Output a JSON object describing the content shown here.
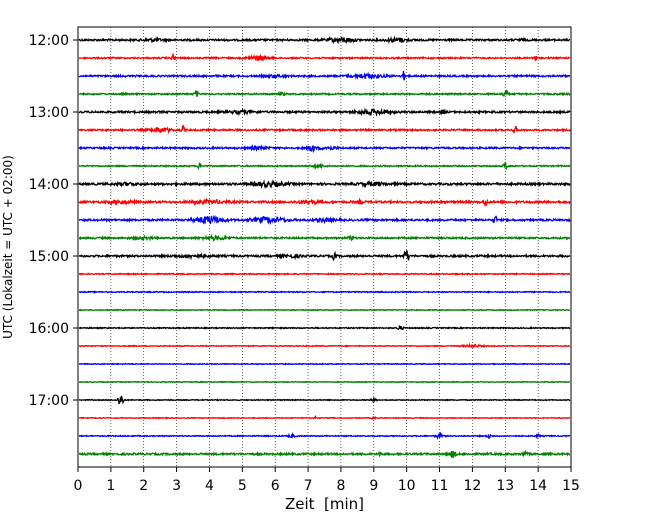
{
  "chart_data": {
    "type": "line",
    "title": "",
    "xlabel": "Zeit  [min]",
    "ylabel": "UTC (Lokalzeit = UTC + 02:00)",
    "xlim": [
      0,
      15
    ],
    "x_ticks": [
      "0",
      "1",
      "2",
      "3",
      "4",
      "5",
      "6",
      "7",
      "8",
      "9",
      "10",
      "11",
      "12",
      "13",
      "14",
      "15"
    ],
    "y_ticks": [
      "12:00",
      "13:00",
      "14:00",
      "15:00",
      "16:00",
      "17:00"
    ],
    "grid": "vertical dotted",
    "legend": "none",
    "trace_colors": [
      "#000000",
      "#ff0000",
      "#0000ff",
      "#008000"
    ],
    "traces": [
      {
        "time": "12:00",
        "color": "#000000",
        "noise": 0.9,
        "events": [
          {
            "t": 8.0,
            "amp": 2.2,
            "w": 0.4
          },
          {
            "t": 9.7,
            "amp": 1.8,
            "w": 0.3
          },
          {
            "t": 2.3,
            "amp": 1.0,
            "w": 0.3
          },
          {
            "t": 13.5,
            "amp": 1.0,
            "w": 0.1
          }
        ]
      },
      {
        "time": "12:15",
        "color": "#ff0000",
        "noise": 0.7,
        "events": [
          {
            "t": 2.9,
            "amp": 4.5,
            "w": 0.05
          },
          {
            "t": 5.5,
            "amp": 2.2,
            "w": 0.3
          },
          {
            "t": 13.9,
            "amp": 4.2,
            "w": 0.05
          }
        ]
      },
      {
        "time": "12:30",
        "color": "#0000ff",
        "noise": 0.8,
        "events": [
          {
            "t": 8.8,
            "amp": 1.8,
            "w": 0.5
          },
          {
            "t": 9.9,
            "amp": 4.5,
            "w": 0.05
          },
          {
            "t": 6.0,
            "amp": 1.0,
            "w": 0.3
          }
        ]
      },
      {
        "time": "12:45",
        "color": "#008000",
        "noise": 0.7,
        "events": [
          {
            "t": 3.6,
            "amp": 3.0,
            "w": 0.05
          },
          {
            "t": 13.0,
            "amp": 5.5,
            "w": 0.06
          },
          {
            "t": 6.2,
            "amp": 1.2,
            "w": 0.1
          }
        ]
      },
      {
        "time": "13:00",
        "color": "#000000",
        "noise": 0.9,
        "events": [
          {
            "t": 9.0,
            "amp": 2.0,
            "w": 0.5
          },
          {
            "t": 11.1,
            "amp": 3.0,
            "w": 0.05
          },
          {
            "t": 5.0,
            "amp": 1.2,
            "w": 0.4
          }
        ]
      },
      {
        "time": "13:15",
        "color": "#ff0000",
        "noise": 0.8,
        "events": [
          {
            "t": 2.5,
            "amp": 2.2,
            "w": 0.3
          },
          {
            "t": 3.2,
            "amp": 3.0,
            "w": 0.05
          },
          {
            "t": 13.3,
            "amp": 3.5,
            "w": 0.05
          }
        ]
      },
      {
        "time": "13:30",
        "color": "#0000ff",
        "noise": 0.8,
        "events": [
          {
            "t": 7.1,
            "amp": 4.5,
            "w": 0.08
          },
          {
            "t": 5.5,
            "amp": 1.3,
            "w": 0.3
          },
          {
            "t": 7.6,
            "amp": 1.2,
            "w": 0.3
          }
        ]
      },
      {
        "time": "13:45",
        "color": "#008000",
        "noise": 0.6,
        "events": [
          {
            "t": 3.7,
            "amp": 3.2,
            "w": 0.05
          },
          {
            "t": 13.0,
            "amp": 3.8,
            "w": 0.05
          },
          {
            "t": 7.3,
            "amp": 1.2,
            "w": 0.2
          }
        ]
      },
      {
        "time": "14:00",
        "color": "#000000",
        "noise": 1.0,
        "events": [
          {
            "t": 5.8,
            "amp": 2.2,
            "w": 0.5
          },
          {
            "t": 9.0,
            "amp": 1.3,
            "w": 0.4
          },
          {
            "t": 1.5,
            "amp": 1.0,
            "w": 0.3
          }
        ]
      },
      {
        "time": "14:15",
        "color": "#ff0000",
        "noise": 1.0,
        "events": [
          {
            "t": 1.3,
            "amp": 1.5,
            "w": 0.3
          },
          {
            "t": 4.0,
            "amp": 1.5,
            "w": 0.5
          },
          {
            "t": 7.0,
            "amp": 1.6,
            "w": 0.3
          },
          {
            "t": 8.6,
            "amp": 2.2,
            "w": 0.05
          },
          {
            "t": 12.4,
            "amp": 3.5,
            "w": 0.05
          }
        ]
      },
      {
        "time": "14:30",
        "color": "#0000ff",
        "noise": 0.9,
        "events": [
          {
            "t": 4.0,
            "amp": 3.5,
            "w": 0.4
          },
          {
            "t": 5.8,
            "amp": 2.5,
            "w": 0.5
          },
          {
            "t": 7.5,
            "amp": 1.5,
            "w": 0.3
          },
          {
            "t": 12.7,
            "amp": 4.0,
            "w": 0.05
          }
        ]
      },
      {
        "time": "14:45",
        "color": "#008000",
        "noise": 0.8,
        "events": [
          {
            "t": 4.2,
            "amp": 1.5,
            "w": 0.4
          },
          {
            "t": 8.3,
            "amp": 2.2,
            "w": 0.08
          },
          {
            "t": 2.0,
            "amp": 1.0,
            "w": 0.3
          }
        ]
      },
      {
        "time": "15:00",
        "color": "#000000",
        "noise": 0.9,
        "events": [
          {
            "t": 7.8,
            "amp": 4.2,
            "w": 0.05
          },
          {
            "t": 10.0,
            "amp": 6.5,
            "w": 0.07
          },
          {
            "t": 3.5,
            "amp": 1.2,
            "w": 0.5
          },
          {
            "t": 6.5,
            "amp": 1.2,
            "w": 0.3
          }
        ]
      },
      {
        "time": "15:15",
        "color": "#ff0000",
        "noise": 0.5,
        "events": []
      },
      {
        "time": "15:30",
        "color": "#0000ff",
        "noise": 0.5,
        "events": []
      },
      {
        "time": "15:45",
        "color": "#008000",
        "noise": 0.4,
        "events": []
      },
      {
        "time": "16:00",
        "color": "#000000",
        "noise": 0.5,
        "events": [
          {
            "t": 9.8,
            "amp": 1.8,
            "w": 0.1
          }
        ]
      },
      {
        "time": "16:15",
        "color": "#ff0000",
        "noise": 0.4,
        "events": [
          {
            "t": 12.0,
            "amp": 1.0,
            "w": 0.3
          }
        ]
      },
      {
        "time": "16:30",
        "color": "#0000ff",
        "noise": 0.4,
        "events": []
      },
      {
        "time": "16:45",
        "color": "#008000",
        "noise": 0.35,
        "events": []
      },
      {
        "time": "17:00",
        "color": "#000000",
        "noise": 0.4,
        "events": [
          {
            "t": 1.3,
            "amp": 6.5,
            "w": 0.08
          },
          {
            "t": 9.0,
            "amp": 1.0,
            "w": 0.1
          }
        ]
      },
      {
        "time": "17:15",
        "color": "#ff0000",
        "noise": 0.35,
        "events": [
          {
            "t": 7.2,
            "amp": 1.5,
            "w": 0.05
          },
          {
            "t": 9.0,
            "amp": 1.5,
            "w": 0.05
          }
        ]
      },
      {
        "time": "17:30",
        "color": "#0000ff",
        "noise": 0.5,
        "events": [
          {
            "t": 6.5,
            "amp": 1.5,
            "w": 0.1
          },
          {
            "t": 11.0,
            "amp": 2.0,
            "w": 0.1
          },
          {
            "t": 12.5,
            "amp": 3.0,
            "w": 0.05
          },
          {
            "t": 14.0,
            "amp": 1.5,
            "w": 0.05
          }
        ]
      },
      {
        "time": "17:45",
        "color": "#008000",
        "noise": 0.9,
        "events": [
          {
            "t": 9.2,
            "amp": 2.0,
            "w": 0.05
          },
          {
            "t": 11.4,
            "amp": 3.0,
            "w": 0.1
          },
          {
            "t": 13.6,
            "amp": 2.5,
            "w": 0.05
          }
        ]
      }
    ]
  }
}
